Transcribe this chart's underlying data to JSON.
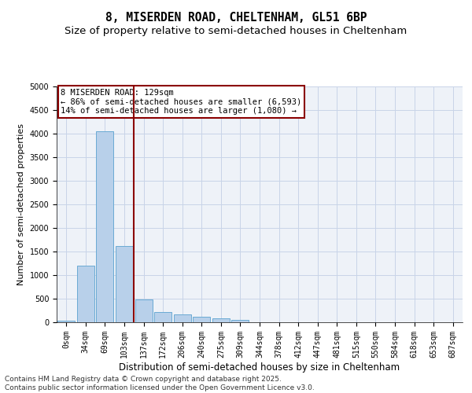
{
  "title_line1": "8, MISERDEN ROAD, CHELTENHAM, GL51 6BP",
  "title_line2": "Size of property relative to semi-detached houses in Cheltenham",
  "xlabel": "Distribution of semi-detached houses by size in Cheltenham",
  "ylabel": "Number of semi-detached properties",
  "categories": [
    "0sqm",
    "34sqm",
    "69sqm",
    "103sqm",
    "137sqm",
    "172sqm",
    "206sqm",
    "240sqm",
    "275sqm",
    "309sqm",
    "344sqm",
    "378sqm",
    "412sqm",
    "447sqm",
    "481sqm",
    "515sqm",
    "550sqm",
    "584sqm",
    "618sqm",
    "653sqm",
    "687sqm"
  ],
  "values": [
    30,
    1200,
    4050,
    1620,
    480,
    220,
    160,
    110,
    80,
    55,
    0,
    0,
    0,
    0,
    0,
    0,
    0,
    0,
    0,
    0,
    0
  ],
  "bar_color": "#b8d0ea",
  "bar_edge_color": "#6aaad4",
  "vline_x": 3.5,
  "vline_color": "#8b0000",
  "annotation_line1": "8 MISERDEN ROAD: 129sqm",
  "annotation_line2": "← 86% of semi-detached houses are smaller (6,593)",
  "annotation_line3": "14% of semi-detached houses are larger (1,080) →",
  "annotation_box_color": "#ffffff",
  "annotation_box_edge": "#8b0000",
  "ylim": [
    0,
    5000
  ],
  "yticks": [
    0,
    500,
    1000,
    1500,
    2000,
    2500,
    3000,
    3500,
    4000,
    4500,
    5000
  ],
  "grid_color": "#c8d4e8",
  "bg_color": "#eef2f8",
  "footer_line1": "Contains HM Land Registry data © Crown copyright and database right 2025.",
  "footer_line2": "Contains public sector information licensed under the Open Government Licence v3.0.",
  "title_fontsize": 10.5,
  "subtitle_fontsize": 9.5,
  "annotation_fontsize": 7.5,
  "footer_fontsize": 6.5,
  "ylabel_fontsize": 8,
  "xlabel_fontsize": 8.5,
  "tick_fontsize": 7
}
